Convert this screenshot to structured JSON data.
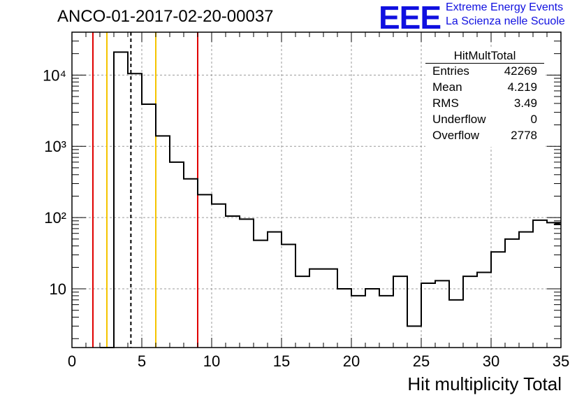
{
  "chart_data": {
    "type": "histogram",
    "title": "ANCO-01-2017-02-20-00037",
    "xlabel": "Hit multiplicity Total",
    "ylabel": "",
    "xlim": [
      0,
      35
    ],
    "ylim": [
      1.5,
      40000
    ],
    "yscale": "log",
    "grid": true,
    "xticks": [
      0,
      5,
      10,
      15,
      20,
      25,
      30,
      35
    ],
    "yticks": [
      {
        "value": 10,
        "label": "10"
      },
      {
        "value": 100,
        "label": "10²"
      },
      {
        "value": 1000,
        "label": "10³"
      },
      {
        "value": 10000,
        "label": "10⁴"
      }
    ],
    "bin_width": 1,
    "bins": [
      {
        "x": 2.5,
        "count": 0
      },
      {
        "x": 3.5,
        "count": 21000
      },
      {
        "x": 4.5,
        "count": 10500
      },
      {
        "x": 5.5,
        "count": 3900
      },
      {
        "x": 6.5,
        "count": 1400
      },
      {
        "x": 7.5,
        "count": 600
      },
      {
        "x": 8.5,
        "count": 350
      },
      {
        "x": 9.5,
        "count": 210
      },
      {
        "x": 10.5,
        "count": 155
      },
      {
        "x": 11.5,
        "count": 105
      },
      {
        "x": 12.5,
        "count": 95
      },
      {
        "x": 13.5,
        "count": 48
      },
      {
        "x": 14.5,
        "count": 63
      },
      {
        "x": 15.5,
        "count": 42
      },
      {
        "x": 16.5,
        "count": 15
      },
      {
        "x": 17.5,
        "count": 19
      },
      {
        "x": 18.5,
        "count": 19
      },
      {
        "x": 19.5,
        "count": 10
      },
      {
        "x": 20.5,
        "count": 8
      },
      {
        "x": 21.5,
        "count": 10
      },
      {
        "x": 22.5,
        "count": 8
      },
      {
        "x": 23.5,
        "count": 15
      },
      {
        "x": 24.5,
        "count": 3
      },
      {
        "x": 25.5,
        "count": 12
      },
      {
        "x": 26.5,
        "count": 13
      },
      {
        "x": 27.5,
        "count": 7
      },
      {
        "x": 28.5,
        "count": 15
      },
      {
        "x": 29.5,
        "count": 17
      },
      {
        "x": 30.5,
        "count": 33
      },
      {
        "x": 31.5,
        "count": 50
      },
      {
        "x": 32.5,
        "count": 63
      },
      {
        "x": 33.5,
        "count": 92
      },
      {
        "x": 34.5,
        "count": 85
      },
      {
        "x": 35.0,
        "count": 80
      }
    ],
    "vertical_lines": [
      {
        "x": 1.5,
        "color": "#e00000",
        "style": "solid"
      },
      {
        "x": 2.5,
        "color": "#f5c400",
        "style": "solid"
      },
      {
        "x": 4.219,
        "color": "#000000",
        "style": "dashed"
      },
      {
        "x": 6.0,
        "color": "#f5c400",
        "style": "solid"
      },
      {
        "x": 9.0,
        "color": "#e00000",
        "style": "solid"
      }
    ],
    "stats_box": {
      "name": "HitMultTotal",
      "rows": [
        {
          "key": "Entries",
          "value": "42269"
        },
        {
          "key": "Mean",
          "value": "4.219"
        },
        {
          "key": "RMS",
          "value": "3.49"
        },
        {
          "key": "Underflow",
          "value": "0"
        },
        {
          "key": "Overflow",
          "value": "2778"
        }
      ]
    }
  },
  "logo": {
    "mark": "EEE",
    "line1": "Extreme Energy Events",
    "line2": "La Scienza nelle Scuole"
  }
}
